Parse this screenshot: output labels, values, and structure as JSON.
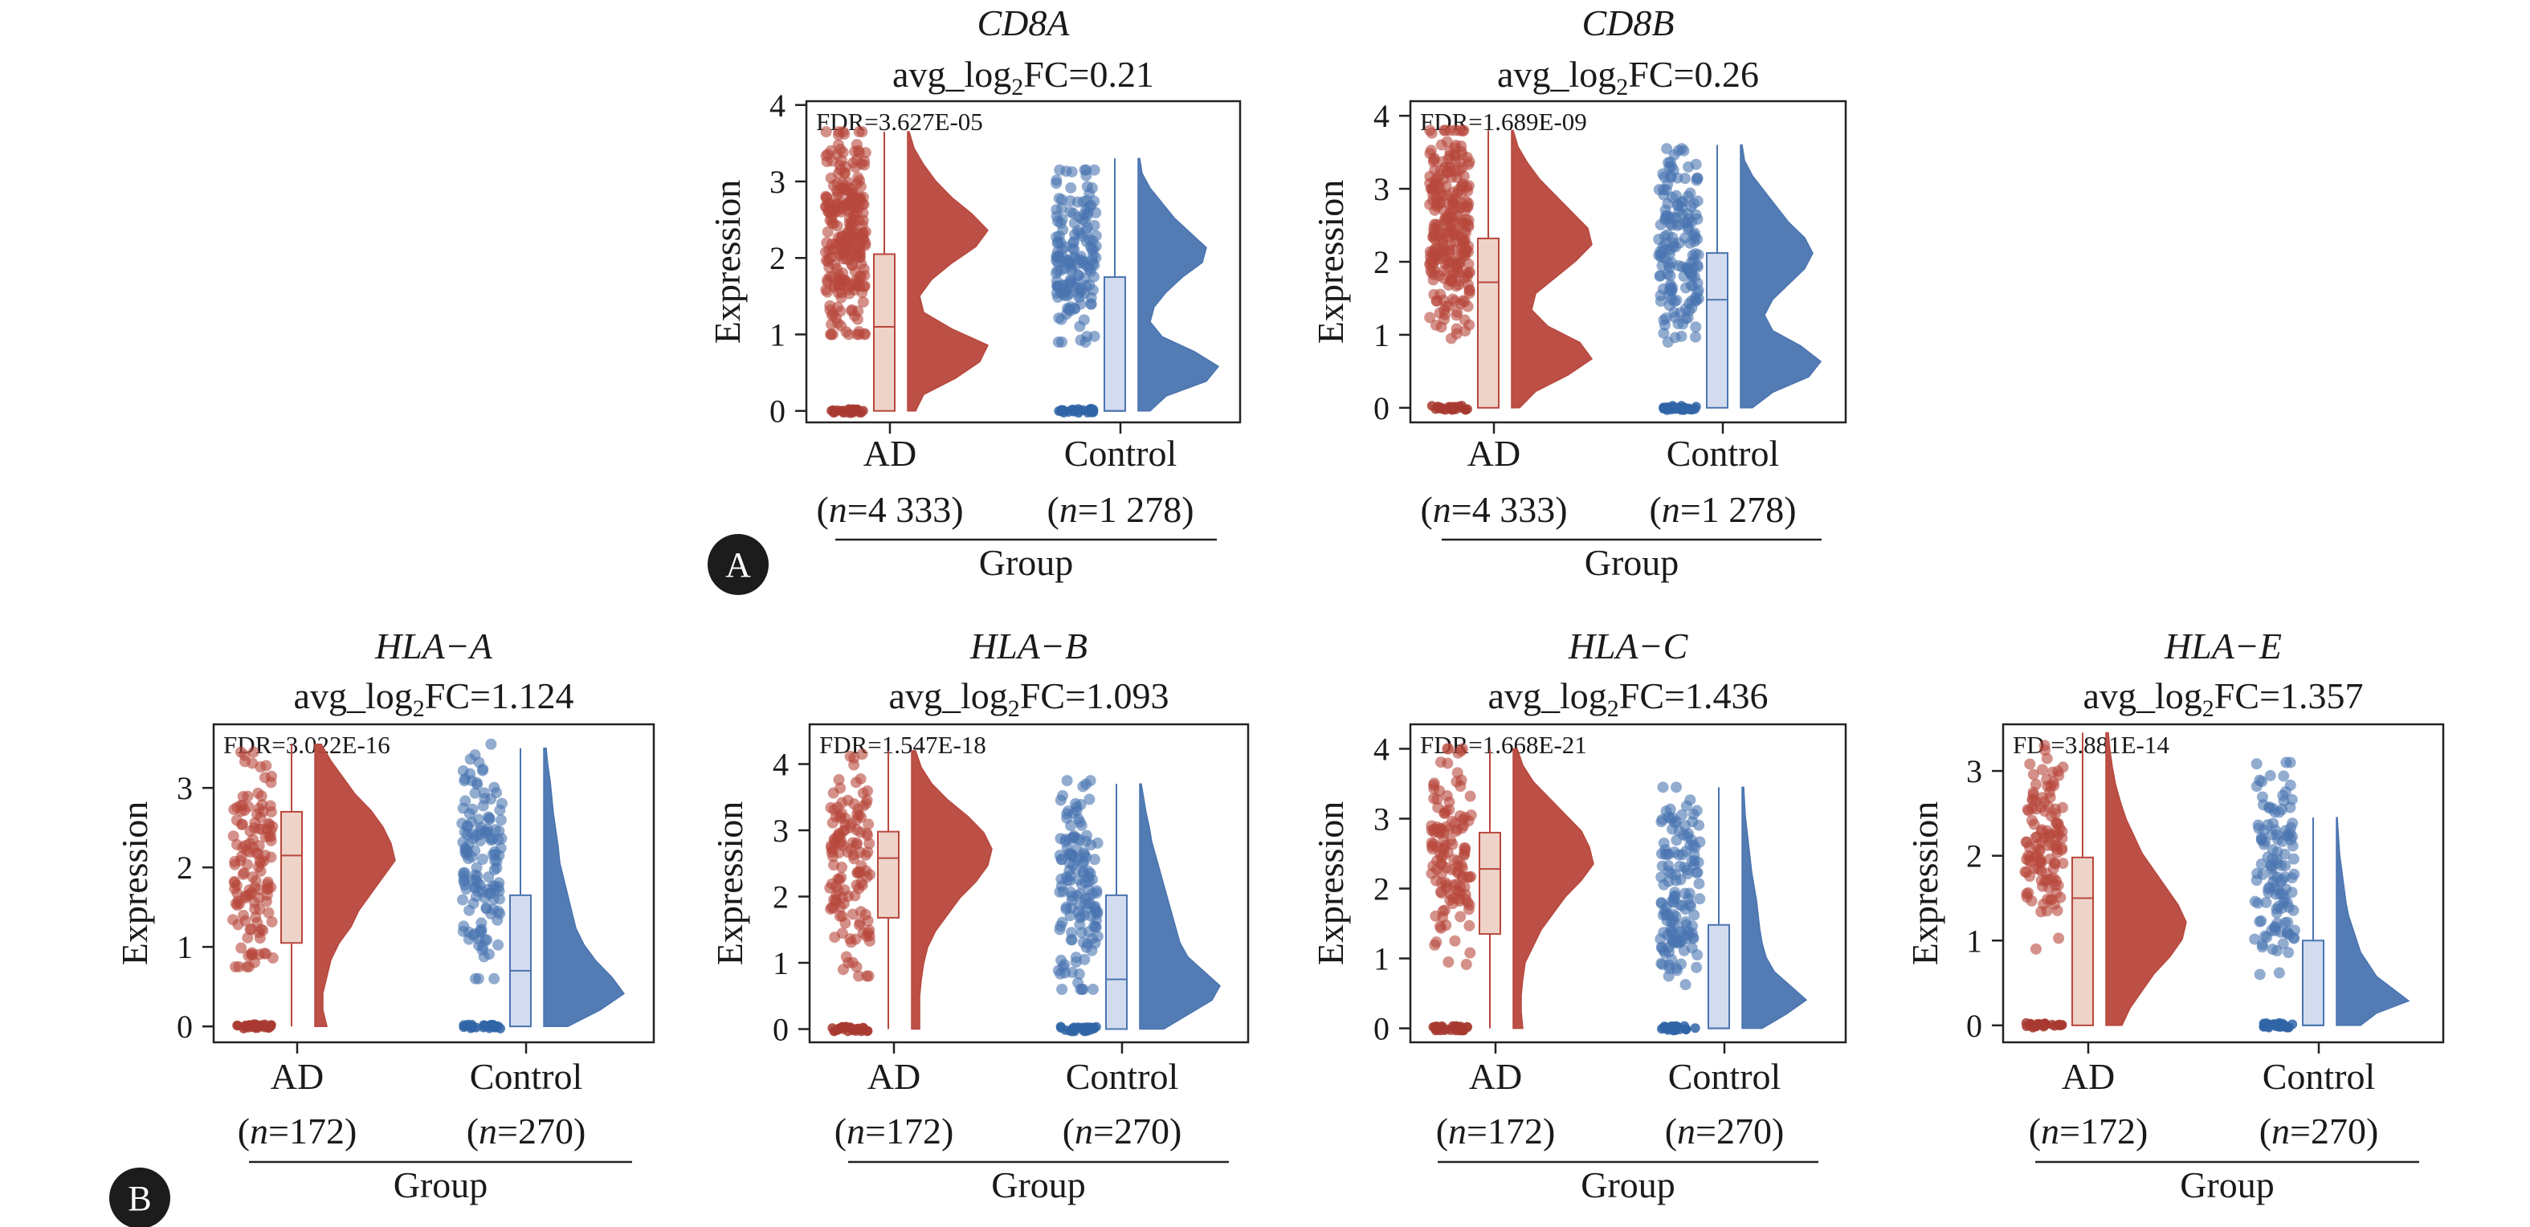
{
  "colors": {
    "ad_dark": "#a83a30",
    "ad_mid": "#b8473c",
    "ad_box": "#eed3c9",
    "ctrl_dark": "#2f64a6",
    "ctrl_mid": "#4a74b0",
    "ctrl_box": "#d3dcef",
    "circle": "#1c1c1c"
  },
  "panels": [
    {
      "letter": "A"
    },
    {
      "letter": "B"
    }
  ],
  "chart_data": [
    {
      "type": "raincloud",
      "gene": "CD8A",
      "fc_prefix": "avg_log",
      "fc_sub": "2",
      "fc_suffix": "FC=0.21",
      "fdr": "FDR=3.627E-05",
      "ylabel": "Expression",
      "xlabel": "Group",
      "ylim": [
        -0.15,
        4.05
      ],
      "yticks": [
        0,
        1,
        2,
        3,
        4
      ],
      "groups": [
        {
          "name": "AD",
          "n_prefix": "(",
          "n_italic": "n",
          "n_value": "=4 333)",
          "q1": 0,
          "median": 1.1,
          "q3": 2.05,
          "whisker_low": 0,
          "whisker_high": 3.65,
          "scatter_low": 1.0,
          "scatter_high": 3.65,
          "dots": 260,
          "density": [
            0.1,
            0.2,
            0.6,
            0.9,
            1.0,
            0.55,
            0.2,
            0.15,
            0.3,
            0.55,
            0.85,
            1.0,
            0.8,
            0.55,
            0.35,
            0.2,
            0.08,
            0.02
          ]
        },
        {
          "name": "Control",
          "n_prefix": "(",
          "n_italic": "n",
          "n_value": "=1 278)",
          "q1": 0,
          "median": 0,
          "q3": 1.75,
          "whisker_low": 0,
          "whisker_high": 3.3,
          "scatter_low": 0.9,
          "scatter_high": 3.15,
          "dots": 160,
          "density": [
            0.15,
            0.35,
            0.85,
            1.0,
            0.7,
            0.3,
            0.15,
            0.2,
            0.35,
            0.55,
            0.8,
            0.85,
            0.65,
            0.45,
            0.3,
            0.15,
            0.05,
            0.02
          ]
        }
      ]
    },
    {
      "type": "raincloud",
      "gene": "CD8B",
      "fc_prefix": "avg_log",
      "fc_sub": "2",
      "fc_suffix": "FC=0.26",
      "fdr": "FDR=1.689E-09",
      "ylabel": "Expression",
      "xlabel": "Group",
      "ylim": [
        -0.2,
        4.2
      ],
      "yticks": [
        0,
        1,
        2,
        3,
        4
      ],
      "groups": [
        {
          "name": "AD",
          "n_prefix": "(",
          "n_italic": "n",
          "n_value": "=4 333)",
          "q1": 0,
          "median": 1.72,
          "q3": 2.32,
          "whisker_low": 0,
          "whisker_high": 3.8,
          "scatter_low": 0.95,
          "scatter_high": 3.8,
          "dots": 260,
          "density": [
            0.1,
            0.3,
            0.7,
            1.0,
            0.85,
            0.45,
            0.25,
            0.3,
            0.55,
            0.8,
            1.0,
            0.95,
            0.75,
            0.55,
            0.35,
            0.2,
            0.08,
            0.02
          ]
        },
        {
          "name": "Control",
          "n_prefix": "(",
          "n_italic": "n",
          "n_value": "=1 278)",
          "q1": 0,
          "median": 1.48,
          "q3": 2.12,
          "whisker_low": 0,
          "whisker_high": 3.6,
          "scatter_low": 0.9,
          "scatter_high": 3.55,
          "dots": 160,
          "density": [
            0.15,
            0.4,
            0.85,
            1.0,
            0.75,
            0.4,
            0.3,
            0.4,
            0.6,
            0.8,
            0.9,
            0.8,
            0.6,
            0.45,
            0.3,
            0.15,
            0.05,
            0.02
          ]
        }
      ]
    },
    {
      "type": "raincloud",
      "gene": "HLA−A",
      "fc_prefix": "avg_log",
      "fc_sub": "2",
      "fc_suffix": "FC=1.124",
      "fdr": "FDR=3.022E-16",
      "ylabel": "Expression",
      "xlabel": "Group",
      "ylim": [
        -0.2,
        3.8
      ],
      "yticks": [
        0,
        1,
        2,
        3
      ],
      "groups": [
        {
          "name": "AD",
          "n_prefix": "(",
          "n_italic": "n",
          "n_value": "=172)",
          "q1": 1.05,
          "median": 2.15,
          "q3": 2.7,
          "whisker_low": 0,
          "whisker_high": 3.55,
          "scatter_low": 0.75,
          "scatter_high": 3.45,
          "dots": 130,
          "density": [
            0.15,
            0.1,
            0.1,
            0.15,
            0.2,
            0.3,
            0.45,
            0.55,
            0.7,
            0.85,
            1.0,
            0.95,
            0.85,
            0.7,
            0.5,
            0.35,
            0.2,
            0.08
          ]
        },
        {
          "name": "Control",
          "n_prefix": "(",
          "n_italic": "n",
          "n_value": "=270)",
          "q1": 0,
          "median": 0.7,
          "q3": 1.65,
          "whisker_low": 0,
          "whisker_high": 3.5,
          "scatter_low": 0.6,
          "scatter_high": 3.55,
          "dots": 140,
          "density": [
            0.3,
            0.7,
            1.0,
            0.85,
            0.65,
            0.5,
            0.4,
            0.35,
            0.3,
            0.25,
            0.2,
            0.18,
            0.15,
            0.12,
            0.1,
            0.08,
            0.05,
            0.03
          ]
        }
      ]
    },
    {
      "type": "raincloud",
      "gene": "HLA−B",
      "fc_prefix": "avg_log",
      "fc_sub": "2",
      "fc_suffix": "FC=1.093",
      "fdr": "FDR=1.547E-18",
      "ylabel": "Expression",
      "xlabel": "Group",
      "ylim": [
        -0.2,
        4.6
      ],
      "yticks": [
        0,
        1,
        2,
        3,
        4
      ],
      "groups": [
        {
          "name": "AD",
          "n_prefix": "(",
          "n_italic": "n",
          "n_value": "=172)",
          "q1": 1.68,
          "median": 2.58,
          "q3": 2.98,
          "whisker_low": 0,
          "whisker_high": 4.2,
          "scatter_low": 0.8,
          "scatter_high": 4.15,
          "dots": 130,
          "density": [
            0.1,
            0.1,
            0.1,
            0.12,
            0.15,
            0.2,
            0.3,
            0.45,
            0.6,
            0.8,
            0.95,
            1.0,
            0.9,
            0.7,
            0.45,
            0.25,
            0.12,
            0.05
          ]
        },
        {
          "name": "Control",
          "n_prefix": "(",
          "n_italic": "n",
          "n_value": "=270)",
          "q1": 0,
          "median": 0.75,
          "q3": 2.02,
          "whisker_low": 0,
          "whisker_high": 3.7,
          "scatter_low": 0.6,
          "scatter_high": 3.75,
          "dots": 140,
          "density": [
            0.3,
            0.6,
            0.9,
            1.0,
            0.8,
            0.6,
            0.5,
            0.45,
            0.4,
            0.35,
            0.3,
            0.25,
            0.2,
            0.15,
            0.12,
            0.08,
            0.05,
            0.02
          ]
        }
      ]
    },
    {
      "type": "raincloud",
      "gene": "HLA−C",
      "fc_prefix": "avg_log",
      "fc_sub": "2",
      "fc_suffix": "FC=1.436",
      "fdr": "FDR=1.668E-21",
      "ylabel": "Expression",
      "xlabel": "Group",
      "ylim": [
        -0.2,
        4.35
      ],
      "yticks": [
        0,
        1,
        2,
        3,
        4
      ],
      "groups": [
        {
          "name": "AD",
          "n_prefix": "(",
          "n_italic": "n",
          "n_value": "=172)",
          "q1": 1.35,
          "median": 2.28,
          "q3": 2.8,
          "whisker_low": 0,
          "whisker_high": 4.0,
          "scatter_low": 0.9,
          "scatter_high": 4.0,
          "dots": 130,
          "density": [
            0.12,
            0.1,
            0.1,
            0.12,
            0.15,
            0.25,
            0.35,
            0.5,
            0.65,
            0.85,
            1.0,
            0.95,
            0.85,
            0.65,
            0.45,
            0.25,
            0.12,
            0.05
          ]
        },
        {
          "name": "Control",
          "n_prefix": "(",
          "n_italic": "n",
          "n_value": "=270)",
          "q1": 0,
          "median": 0,
          "q3": 1.48,
          "whisker_low": 0,
          "whisker_high": 3.45,
          "scatter_low": 0.6,
          "scatter_high": 3.45,
          "dots": 140,
          "density": [
            0.25,
            0.55,
            0.8,
            0.6,
            0.4,
            0.3,
            0.25,
            0.22,
            0.2,
            0.18,
            0.15,
            0.12,
            0.1,
            0.08,
            0.06,
            0.04,
            0.03,
            0.02
          ]
        }
      ]
    },
    {
      "type": "raincloud",
      "gene": "HLA−E",
      "fc_prefix": "avg_log",
      "fc_sub": "2",
      "fc_suffix": "FC=1.357",
      "fdr": "FD =3.881E-14",
      "ylabel": "Expression",
      "xlabel": "Group",
      "ylim": [
        -0.2,
        3.55
      ],
      "yticks": [
        0,
        1,
        2,
        3
      ],
      "groups": [
        {
          "name": "AD",
          "n_prefix": "(",
          "n_italic": "n",
          "n_value": "=172)",
          "q1": 0,
          "median": 1.5,
          "q3": 1.98,
          "whisker_low": 0,
          "whisker_high": 3.45,
          "scatter_low": 0.9,
          "scatter_high": 3.3,
          "dots": 120,
          "density": [
            0.2,
            0.3,
            0.45,
            0.6,
            0.8,
            0.95,
            1.0,
            0.9,
            0.75,
            0.6,
            0.45,
            0.35,
            0.25,
            0.18,
            0.12,
            0.08,
            0.05,
            0.03
          ]
        },
        {
          "name": "Control",
          "n_prefix": "(",
          "n_italic": "n",
          "n_value": "=270)",
          "q1": 0,
          "median": 0,
          "q3": 1.0,
          "whisker_low": 0,
          "whisker_high": 2.45,
          "scatter_low": 0.6,
          "scatter_high": 3.1,
          "dots": 120,
          "density": [
            0.3,
            0.5,
            0.9,
            0.7,
            0.5,
            0.4,
            0.3,
            0.25,
            0.2,
            0.15,
            0.12,
            0.1,
            0.08,
            0.06,
            0.04,
            0.03,
            0.02,
            0.01
          ]
        }
      ]
    }
  ]
}
